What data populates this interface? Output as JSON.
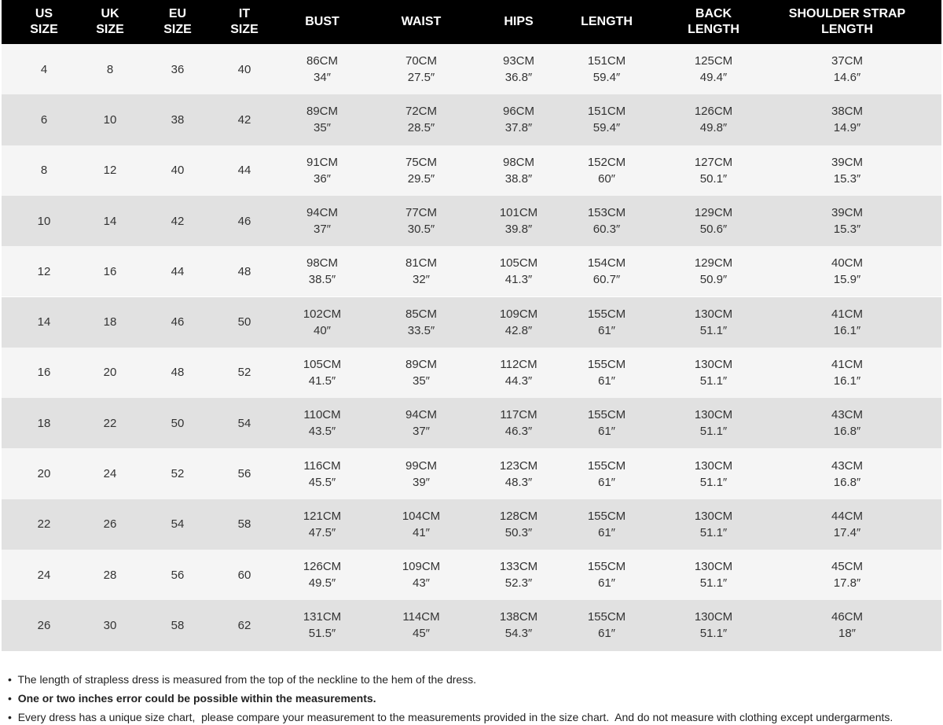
{
  "table": {
    "headers": [
      [
        "US",
        "SIZE"
      ],
      [
        "UK",
        "SIZE"
      ],
      [
        "EU",
        "SIZE"
      ],
      [
        "IT",
        "SIZE"
      ],
      [
        "BUST"
      ],
      [
        "WAIST"
      ],
      [
        "HIPS"
      ],
      [
        "LENGTH"
      ],
      [
        "BACK",
        "LENGTH"
      ],
      [
        "SHOULDER STRAP",
        "LENGTH"
      ]
    ],
    "rows": [
      [
        4,
        8,
        36,
        40,
        [
          "86CM",
          "34″"
        ],
        [
          "70CM",
          "27.5″"
        ],
        [
          "93CM",
          "36.8″"
        ],
        [
          "151CM",
          "59.4″"
        ],
        [
          "125CM",
          "49.4″"
        ],
        [
          "37CM",
          "14.6″"
        ]
      ],
      [
        6,
        10,
        38,
        42,
        [
          "89CM",
          "35″"
        ],
        [
          "72CM",
          "28.5″"
        ],
        [
          "96CM",
          "37.8″"
        ],
        [
          "151CM",
          "59.4″"
        ],
        [
          "126CM",
          "49.8″"
        ],
        [
          "38CM",
          "14.9″"
        ]
      ],
      [
        8,
        12,
        40,
        44,
        [
          "91CM",
          "36″"
        ],
        [
          "75CM",
          "29.5″"
        ],
        [
          "98CM",
          "38.8″"
        ],
        [
          "152CM",
          "60″"
        ],
        [
          "127CM",
          "50.1″"
        ],
        [
          "39CM",
          "15.3″"
        ]
      ],
      [
        10,
        14,
        42,
        46,
        [
          "94CM",
          "37″"
        ],
        [
          "77CM",
          "30.5″"
        ],
        [
          "101CM",
          "39.8″"
        ],
        [
          "153CM",
          "60.3″"
        ],
        [
          "129CM",
          "50.6″"
        ],
        [
          "39CM",
          "15.3″"
        ]
      ],
      [
        12,
        16,
        44,
        48,
        [
          "98CM",
          "38.5″"
        ],
        [
          "81CM",
          "32″"
        ],
        [
          "105CM",
          "41.3″"
        ],
        [
          "154CM",
          "60.7″"
        ],
        [
          "129CM",
          "50.9″"
        ],
        [
          "40CM",
          "15.9″"
        ]
      ],
      [
        14,
        18,
        46,
        50,
        [
          "102CM",
          "40″"
        ],
        [
          "85CM",
          "33.5″"
        ],
        [
          "109CM",
          "42.8″"
        ],
        [
          "155CM",
          "61″"
        ],
        [
          "130CM",
          "51.1″"
        ],
        [
          "41CM",
          "16.1″"
        ]
      ],
      [
        16,
        20,
        48,
        52,
        [
          "105CM",
          "41.5″"
        ],
        [
          "89CM",
          "35″"
        ],
        [
          "112CM",
          "44.3″"
        ],
        [
          "155CM",
          "61″"
        ],
        [
          "130CM",
          "51.1″"
        ],
        [
          "41CM",
          "16.1″"
        ]
      ],
      [
        18,
        22,
        50,
        54,
        [
          "110CM",
          "43.5″"
        ],
        [
          "94CM",
          "37″"
        ],
        [
          "117CM",
          "46.3″"
        ],
        [
          "155CM",
          "61″"
        ],
        [
          "130CM",
          "51.1″"
        ],
        [
          "43CM",
          "16.8″"
        ]
      ],
      [
        20,
        24,
        52,
        56,
        [
          "116CM",
          "45.5″"
        ],
        [
          "99CM",
          "39″"
        ],
        [
          "123CM",
          "48.3″"
        ],
        [
          "155CM",
          "61″"
        ],
        [
          "130CM",
          "51.1″"
        ],
        [
          "43CM",
          "16.8″"
        ]
      ],
      [
        22,
        26,
        54,
        58,
        [
          "121CM",
          "47.5″"
        ],
        [
          "104CM",
          "41″"
        ],
        [
          "128CM",
          "50.3″"
        ],
        [
          "155CM",
          "61″"
        ],
        [
          "130CM",
          "51.1″"
        ],
        [
          "44CM",
          "17.4″"
        ]
      ],
      [
        24,
        28,
        56,
        60,
        [
          "126CM",
          "49.5″"
        ],
        [
          "109CM",
          "43″"
        ],
        [
          "133CM",
          "52.3″"
        ],
        [
          "155CM",
          "61″"
        ],
        [
          "130CM",
          "51.1″"
        ],
        [
          "45CM",
          "17.8″"
        ]
      ],
      [
        26,
        30,
        58,
        62,
        [
          "131CM",
          "51.5″"
        ],
        [
          "114CM",
          "45″"
        ],
        [
          "138CM",
          "54.3″"
        ],
        [
          "155CM",
          "61″"
        ],
        [
          "130CM",
          "51.1″"
        ],
        [
          "46CM",
          "18″"
        ]
      ]
    ]
  },
  "notes": [
    {
      "text": "The length of strapless dress is measured from the top of the neckline to the hem of the dress.",
      "bold": false
    },
    {
      "text": "One or two inches error could be possible within the measurements.",
      "bold": true
    },
    {
      "text": "Every dress has a unique size chart,  please compare your measurement to the measurements provided in the size chart.  And do not measure with clothing except undergarments.",
      "bold": false
    }
  ]
}
